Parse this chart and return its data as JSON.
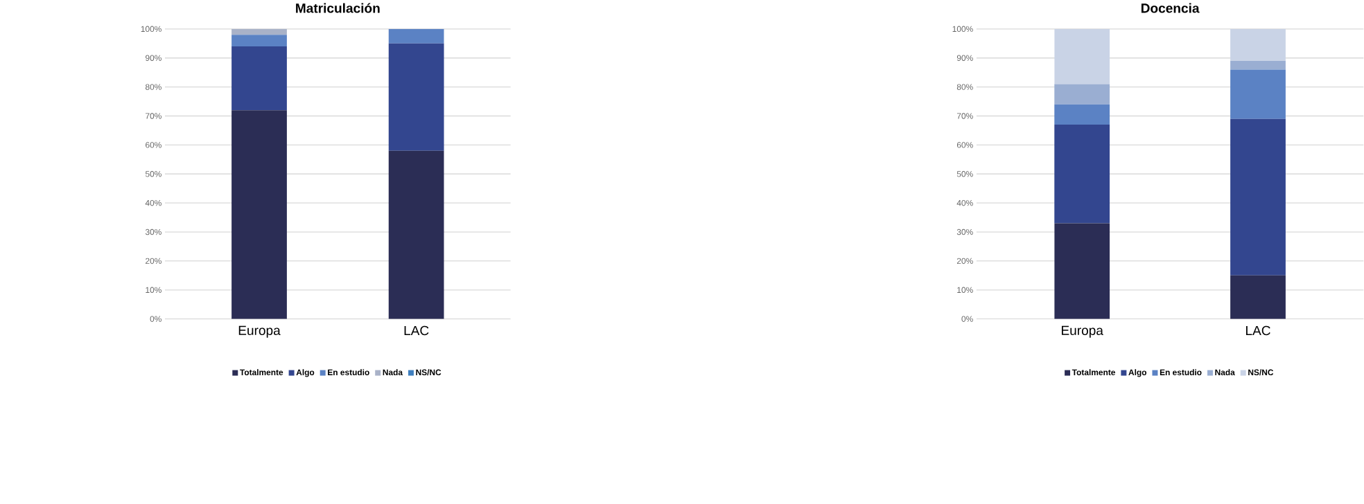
{
  "chart_data": [
    {
      "type": "bar",
      "stacked": true,
      "title": "Matriculación",
      "categories": [
        "Europa",
        "LAC"
      ],
      "ylim": [
        0,
        100
      ],
      "yticks": [
        {
          "value": 0,
          "label": "0%"
        },
        {
          "value": 10,
          "label": "10%"
        },
        {
          "value": 20,
          "label": "20%"
        },
        {
          "value": 30,
          "label": "30%"
        },
        {
          "value": 40,
          "label": "40%"
        },
        {
          "value": 50,
          "label": "50%"
        },
        {
          "value": 60,
          "label": "60%"
        },
        {
          "value": 70,
          "label": "70%"
        },
        {
          "value": 80,
          "label": "80%"
        },
        {
          "value": 90,
          "label": "90%"
        },
        {
          "value": 100,
          "label": "100%"
        }
      ],
      "grid": "y",
      "legend": "bottom",
      "series": [
        {
          "name": "Totalmente",
          "color": "#2b2d55",
          "values": [
            72,
            58
          ]
        },
        {
          "name": "Algo",
          "color": "#33468f",
          "values": [
            22,
            37
          ]
        },
        {
          "name": "En estudio",
          "color": "#5b82c4",
          "values": [
            4,
            5
          ]
        },
        {
          "name": "Nada",
          "color": "#a9b2c8",
          "values": [
            2,
            0
          ]
        },
        {
          "name": "NS/NC",
          "color": "#3f7fbf",
          "values": [
            0,
            0
          ]
        }
      ]
    },
    {
      "type": "bar",
      "stacked": true,
      "title": "Docencia",
      "categories": [
        "Europa",
        "LAC"
      ],
      "ylim": [
        0,
        100
      ],
      "yticks": [
        {
          "value": 0,
          "label": "0%"
        },
        {
          "value": 10,
          "label": "10%"
        },
        {
          "value": 20,
          "label": "20%"
        },
        {
          "value": 30,
          "label": "30%"
        },
        {
          "value": 40,
          "label": "40%"
        },
        {
          "value": 50,
          "label": "50%"
        },
        {
          "value": 60,
          "label": "60%"
        },
        {
          "value": 70,
          "label": "70%"
        },
        {
          "value": 80,
          "label": "80%"
        },
        {
          "value": 90,
          "label": "90%"
        },
        {
          "value": 100,
          "label": "100%"
        }
      ],
      "grid": "y",
      "legend": "bottom",
      "series": [
        {
          "name": "Totalmente",
          "color": "#2b2d55",
          "values": [
            33,
            15
          ]
        },
        {
          "name": "Algo",
          "color": "#33468f",
          "values": [
            34,
            54
          ]
        },
        {
          "name": "En estudio",
          "color": "#5b82c4",
          "values": [
            7,
            17
          ]
        },
        {
          "name": "Nada",
          "color": "#9aaed2",
          "values": [
            7,
            3
          ]
        },
        {
          "name": "NS/NC",
          "color": "#c9d3e6",
          "values": [
            19,
            11
          ]
        }
      ]
    }
  ]
}
